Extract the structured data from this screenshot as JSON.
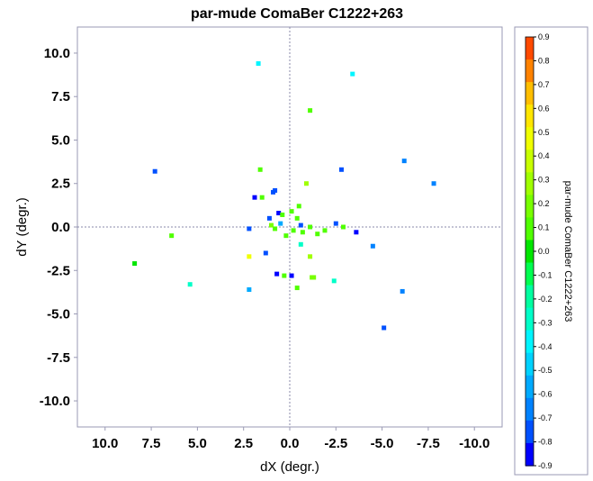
{
  "chart_data": {
    "type": "scatter",
    "title": "par-mude ComaBer  C1222+263",
    "xlabel": "dX (degr.)",
    "ylabel": "dY (degr.)",
    "xlim": [
      11.5,
      -11.5
    ],
    "ylim": [
      -11.5,
      11.5
    ],
    "x_reversed": true,
    "x_ticks": [
      10,
      7.5,
      5,
      2.5,
      0,
      -2.5,
      -5,
      -7.5,
      -10
    ],
    "x_tick_labels": [
      "10.0",
      "7.5",
      "5.0",
      "2.5",
      "0.0",
      "-2.5",
      "-5.0",
      "-7.5",
      "-10.0"
    ],
    "y_ticks": [
      10,
      7.5,
      5,
      2.5,
      0,
      -2.5,
      -5,
      -7.5,
      -10
    ],
    "y_tick_labels": [
      "10.0",
      "7.5",
      "5.0",
      "2.5",
      "0.0",
      "-2.5",
      "-5.0",
      "-7.5",
      "-10.0"
    ],
    "grid": false,
    "zero_lines": true,
    "colorbar": {
      "label": "par-mude ComaBer  C1222+263",
      "range": [
        -0.9,
        0.9
      ],
      "ticks": [
        0.9,
        0.8,
        0.7,
        0.6,
        0.5,
        0.4,
        0.3,
        0.2,
        0.1,
        0.0,
        -0.1,
        -0.2,
        -0.3,
        -0.4,
        -0.5,
        -0.6,
        -0.7,
        -0.8,
        -0.9
      ],
      "tick_labels": [
        "0.9",
        "0.8",
        "0.7",
        "0.6",
        "0.5",
        "0.4",
        "0.3",
        "0.2",
        "0.1",
        "0.0",
        "-0.1",
        "-0.2",
        "-0.3",
        "-0.4",
        "-0.5",
        "-0.6",
        "-0.7",
        "-0.8",
        "-0.9"
      ],
      "colors": [
        "#ff4a00",
        "#ff8200",
        "#ffbe00",
        "#ffe600",
        "#f0ff00",
        "#c8ff00",
        "#a0ff00",
        "#78ff00",
        "#50ff00",
        "#00e600",
        "#00ff50",
        "#00ffa0",
        "#00ffc8",
        "#00f5ff",
        "#00d2ff",
        "#00aaff",
        "#0082ff",
        "#0050ff",
        "#0000ff"
      ]
    },
    "points": [
      {
        "x": 1.7,
        "y": 9.4,
        "v": -0.35
      },
      {
        "x": -3.4,
        "y": 8.8,
        "v": -0.4
      },
      {
        "x": -1.1,
        "y": 6.7,
        "v": 0.05
      },
      {
        "x": 7.3,
        "y": 3.2,
        "v": -0.8
      },
      {
        "x": -6.2,
        "y": 3.8,
        "v": -0.65
      },
      {
        "x": -7.8,
        "y": 2.5,
        "v": -0.65
      },
      {
        "x": -2.8,
        "y": 3.3,
        "v": -0.75
      },
      {
        "x": 1.6,
        "y": 3.3,
        "v": 0.05
      },
      {
        "x": -0.9,
        "y": 2.5,
        "v": 0.25
      },
      {
        "x": 0.8,
        "y": 2.1,
        "v": -0.8
      },
      {
        "x": 0.9,
        "y": 2.0,
        "v": -0.75
      },
      {
        "x": 1.9,
        "y": 1.7,
        "v": -0.85
      },
      {
        "x": 1.5,
        "y": 1.7,
        "v": 0.1
      },
      {
        "x": -0.5,
        "y": 1.2,
        "v": 0.1
      },
      {
        "x": -0.1,
        "y": 0.9,
        "v": 0.1
      },
      {
        "x": 0.6,
        "y": 0.8,
        "v": -0.85
      },
      {
        "x": 0.4,
        "y": 0.7,
        "v": 0.1
      },
      {
        "x": -0.4,
        "y": 0.5,
        "v": 0.05
      },
      {
        "x": 1.1,
        "y": 0.5,
        "v": -0.8
      },
      {
        "x": 0.5,
        "y": 0.2,
        "v": -0.6
      },
      {
        "x": 1.0,
        "y": 0.1,
        "v": 0.15
      },
      {
        "x": -0.6,
        "y": 0.1,
        "v": -0.8
      },
      {
        "x": -2.5,
        "y": 0.2,
        "v": -0.75
      },
      {
        "x": 2.2,
        "y": -0.1,
        "v": -0.8
      },
      {
        "x": 0.8,
        "y": -0.1,
        "v": 0.1
      },
      {
        "x": -0.2,
        "y": -0.2,
        "v": 0.1
      },
      {
        "x": -0.7,
        "y": -0.3,
        "v": 0.1
      },
      {
        "x": -1.1,
        "y": 0.0,
        "v": 0.05
      },
      {
        "x": -1.5,
        "y": -0.4,
        "v": 0.05
      },
      {
        "x": -1.9,
        "y": -0.2,
        "v": 0.1
      },
      {
        "x": -2.9,
        "y": 0.0,
        "v": 0.05
      },
      {
        "x": -3.6,
        "y": -0.3,
        "v": -0.85
      },
      {
        "x": 0.2,
        "y": -0.5,
        "v": 0.1
      },
      {
        "x": 6.4,
        "y": -0.5,
        "v": 0.05
      },
      {
        "x": -4.5,
        "y": -1.1,
        "v": -0.7
      },
      {
        "x": -0.6,
        "y": -1.0,
        "v": -0.25
      },
      {
        "x": 1.3,
        "y": -1.5,
        "v": -0.8
      },
      {
        "x": 8.4,
        "y": -2.1,
        "v": 0.0
      },
      {
        "x": 2.2,
        "y": -1.7,
        "v": 0.45
      },
      {
        "x": -1.1,
        "y": -1.7,
        "v": 0.25
      },
      {
        "x": 0.7,
        "y": -2.7,
        "v": -0.85
      },
      {
        "x": 0.3,
        "y": -2.8,
        "v": 0.1
      },
      {
        "x": -0.1,
        "y": -2.8,
        "v": -0.85
      },
      {
        "x": -1.2,
        "y": -2.9,
        "v": 0.15
      },
      {
        "x": -1.3,
        "y": -2.9,
        "v": 0.15
      },
      {
        "x": -2.4,
        "y": -3.1,
        "v": -0.25
      },
      {
        "x": 5.4,
        "y": -3.3,
        "v": -0.3
      },
      {
        "x": 2.2,
        "y": -3.6,
        "v": -0.55
      },
      {
        "x": -0.4,
        "y": -3.5,
        "v": 0.05
      },
      {
        "x": -6.1,
        "y": -3.7,
        "v": -0.65
      },
      {
        "x": -5.1,
        "y": -5.8,
        "v": -0.75
      }
    ]
  }
}
